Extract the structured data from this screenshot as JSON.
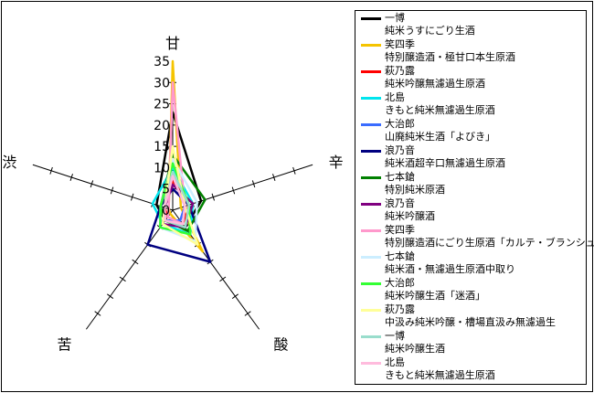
{
  "chart_data": {
    "type": "radar",
    "axes": [
      "甘",
      "辛",
      "酸",
      "苦",
      "渋"
    ],
    "radial_ticks": [
      "0",
      "5",
      "10",
      "15",
      "20",
      "25",
      "30",
      "35"
    ],
    "rmax": 35,
    "series": [
      {
        "name": "一博",
        "desc": "純米うすにごり生酒",
        "color": "#000000",
        "values": [
          23,
          7,
          5,
          3,
          4
        ]
      },
      {
        "name": "笑四季",
        "desc": "特別醸造酒・極甘口本生原酒",
        "color": "#f5c400",
        "values": [
          35,
          2,
          12,
          1,
          1
        ]
      },
      {
        "name": "萩乃露",
        "desc": "純米吟醸無濾過生原酒",
        "color": "#ff0000",
        "values": [
          7,
          4,
          4,
          2,
          2
        ]
      },
      {
        "name": "北島",
        "desc": "きもと純米無濾過生原酒",
        "color": "#00e5ee",
        "values": [
          10,
          5,
          7,
          4,
          5
        ]
      },
      {
        "name": "大治郎",
        "desc": "山廃純米生酒「よびき」",
        "color": "#3a6cff",
        "values": [
          8,
          3,
          3,
          3,
          3
        ]
      },
      {
        "name": "浪乃音",
        "desc": "純米酒超辛口無濾過生原酒",
        "color": "#000080",
        "values": [
          5,
          4,
          15,
          10,
          3
        ]
      },
      {
        "name": "七本鎗",
        "desc": "特別純米原酒",
        "color": "#008000",
        "values": [
          13,
          8,
          6,
          3,
          3
        ]
      },
      {
        "name": "浪乃音",
        "desc": "純米吟醸酒",
        "color": "#800080",
        "values": [
          6,
          5,
          5,
          4,
          2
        ]
      },
      {
        "name": "笑四季",
        "desc": "特別醸造酒にごり生原酒「カルテ・ブランシュ」",
        "color": "#ff99cc",
        "values": [
          30,
          3,
          4,
          2,
          1
        ]
      },
      {
        "name": "七本鎗",
        "desc": "純米酒・無濾過生原酒中取り",
        "color": "#cceeff",
        "values": [
          12,
          6,
          9,
          5,
          3
        ]
      },
      {
        "name": "大治郎",
        "desc": "純米吟醸生酒「迷酒」",
        "color": "#33ff33",
        "values": [
          11,
          4,
          7,
          5,
          3
        ]
      },
      {
        "name": "萩乃露",
        "desc": "中汲み純米吟醸・槽場直汲み無濾過生",
        "color": "#ffff99",
        "values": [
          15,
          3,
          10,
          4,
          2
        ]
      },
      {
        "name": "一博",
        "desc": "純米吟醸生酒",
        "color": "#99ddcc",
        "values": [
          9,
          4,
          5,
          3,
          2
        ]
      },
      {
        "name": "北島",
        "desc": "きもと純米無濾過生原酒",
        "color": "#ffbbdd",
        "values": [
          8,
          3,
          4,
          3,
          2
        ]
      }
    ]
  }
}
